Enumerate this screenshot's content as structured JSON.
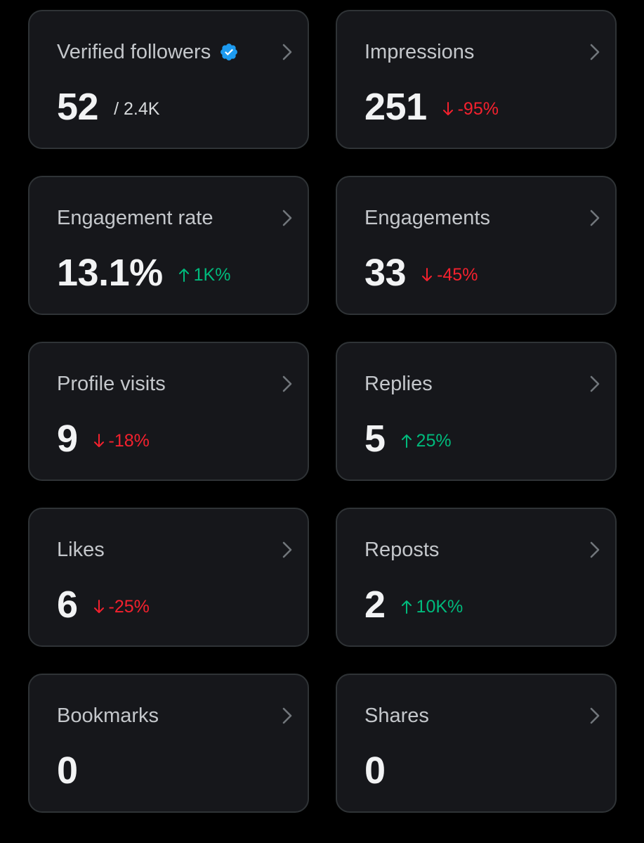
{
  "colors": {
    "background": "#000000",
    "card": "#16171b",
    "card_border": "#2f3336",
    "label": "#c4c7cb",
    "value": "#f2f3f4",
    "up": "#00ba7c",
    "down": "#f4212e",
    "verified": "#1d9bf0"
  },
  "cards": {
    "verified_followers": {
      "label": "Verified followers",
      "icon": "verified-badge-icon",
      "value": "52",
      "total": "/ 2.4K"
    },
    "impressions": {
      "label": "Impressions",
      "value": "251",
      "delta": "-95%",
      "direction": "down"
    },
    "engagement_rate": {
      "label": "Engagement rate",
      "value": "13.1%",
      "delta": "1K%",
      "direction": "up"
    },
    "engagements": {
      "label": "Engagements",
      "value": "33",
      "delta": "-45%",
      "direction": "down"
    },
    "profile_visits": {
      "label": "Profile visits",
      "value": "9",
      "delta": "-18%",
      "direction": "down"
    },
    "replies": {
      "label": "Replies",
      "value": "5",
      "delta": "25%",
      "direction": "up"
    },
    "likes": {
      "label": "Likes",
      "value": "6",
      "delta": "-25%",
      "direction": "down"
    },
    "reposts": {
      "label": "Reposts",
      "value": "2",
      "delta": "10K%",
      "direction": "up"
    },
    "bookmarks": {
      "label": "Bookmarks",
      "value": "0"
    },
    "shares": {
      "label": "Shares",
      "value": "0"
    }
  }
}
